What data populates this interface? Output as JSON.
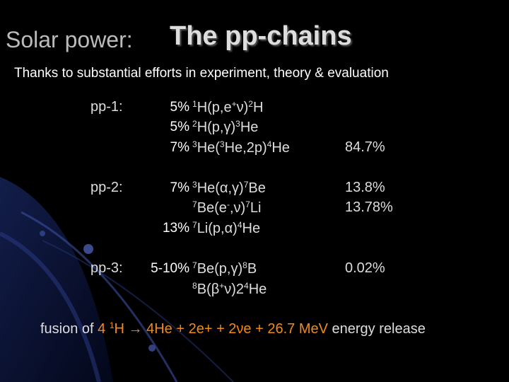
{
  "title": {
    "prefix": "Solar power:",
    "main": "The pp-chains"
  },
  "subtitle": "Thanks to substantial efforts in experiment, theory & evaluation",
  "chains": [
    {
      "label": "pp-1:",
      "rows": [
        {
          "uncertainty": "5%",
          "reaction": [
            {
              "text": "1",
              "sup": true
            },
            {
              "text": "H(p,e"
            },
            {
              "text": "+",
              "sup": true
            },
            {
              "text": "ν)"
            },
            {
              "text": "2",
              "sup": true
            },
            {
              "text": "H"
            }
          ]
        },
        {
          "uncertainty": "5%",
          "reaction": [
            {
              "text": "2",
              "sup": true
            },
            {
              "text": "H(p,γ)"
            },
            {
              "text": "3",
              "sup": true
            },
            {
              "text": "He"
            }
          ]
        },
        {
          "uncertainty": "7%",
          "reaction": [
            {
              "text": "3",
              "sup": true
            },
            {
              "text": "He("
            },
            {
              "text": "3",
              "sup": true
            },
            {
              "text": "He,2p)"
            },
            {
              "text": "4",
              "sup": true
            },
            {
              "text": "He"
            }
          ],
          "branch": "84.7%"
        }
      ]
    },
    {
      "label": "pp-2:",
      "rows": [
        {
          "uncertainty": "7%",
          "reaction": [
            {
              "text": "3",
              "sup": true
            },
            {
              "text": "He(α,γ)"
            },
            {
              "text": "7",
              "sup": true
            },
            {
              "text": "Be"
            }
          ],
          "branch": "13.8%"
        },
        {
          "reaction": [
            {
              "text": "7",
              "sup": true
            },
            {
              "text": "Be(e"
            },
            {
              "text": "-",
              "sup": true
            },
            {
              "text": ",ν)"
            },
            {
              "text": "7",
              "sup": true
            },
            {
              "text": "Li"
            }
          ],
          "branch": "13.78%"
        },
        {
          "uncertainty": "13%",
          "reaction": [
            {
              "text": "7",
              "sup": true
            },
            {
              "text": "Li(p,α)"
            },
            {
              "text": "4",
              "sup": true
            },
            {
              "text": "He"
            }
          ]
        }
      ]
    },
    {
      "label": "pp-3:",
      "rows": [
        {
          "uncertainty": "5-10%",
          "reaction": [
            {
              "text": "7",
              "sup": true
            },
            {
              "text": "Be(p,γ)"
            },
            {
              "text": "8",
              "sup": true
            },
            {
              "text": "B"
            }
          ],
          "branch": "0.02%"
        },
        {
          "reaction": [
            {
              "text": "8",
              "sup": true
            },
            {
              "text": "B(β"
            },
            {
              "text": "+",
              "sup": true
            },
            {
              "text": "ν)2"
            },
            {
              "text": "4",
              "sup": true
            },
            {
              "text": "He"
            }
          ]
        }
      ]
    }
  ],
  "footer": [
    {
      "text": "fusion of "
    },
    {
      "text": "4 ",
      "highlight": true
    },
    {
      "text": "1",
      "sup": true,
      "highlight": true
    },
    {
      "text": "H → 4He + 2e+ + 2νe + 26.7 MeV",
      "highlight": true
    },
    {
      "text": " energy release"
    }
  ]
}
